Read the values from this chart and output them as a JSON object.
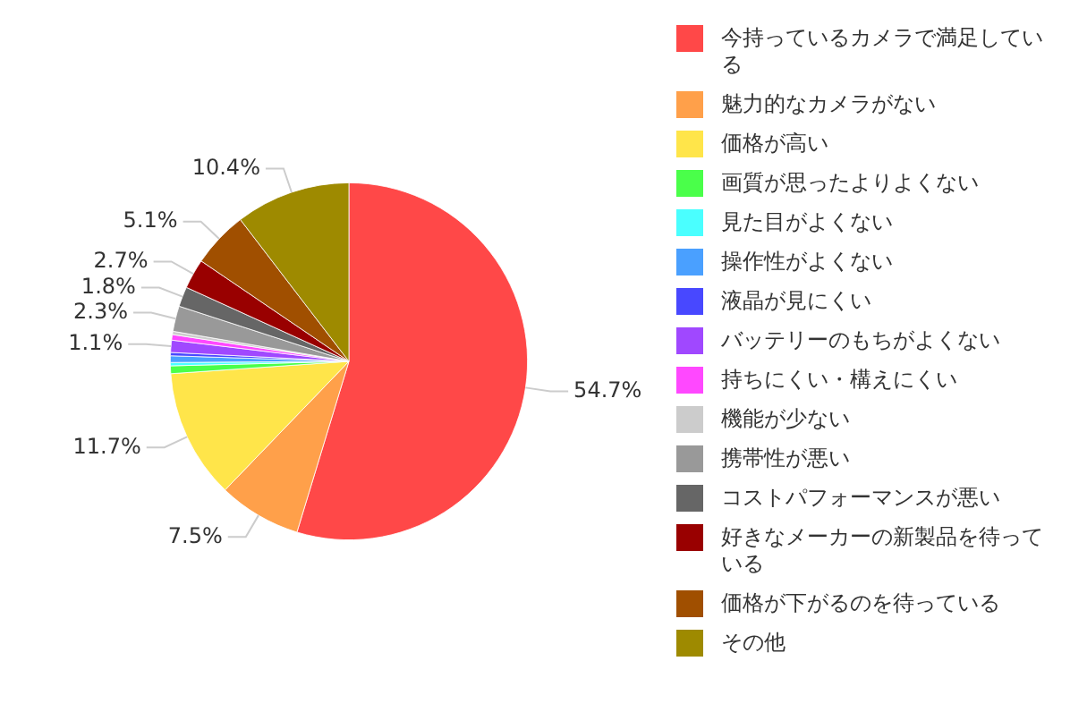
{
  "chart_data": {
    "type": "pie",
    "categories": [
      "今持っているカメラで満足している",
      "魅力的なカメラがない",
      "価格が高い",
      "画質が思ったよりよくない",
      "見た目がよくない",
      "操作性がよくない",
      "液晶が見にくい",
      "バッテリーのもちがよくない",
      "持ちにくい・構えにくい",
      "機能が少ない",
      "携帯性が悪い",
      "コストパフォーマンスが悪い",
      "好きなメーカーの新製品を待っている",
      "価格が下がるのを待っている",
      "その他"
    ],
    "values": [
      54.7,
      7.5,
      11.7,
      0.7,
      0.3,
      0.6,
      0.3,
      1.1,
      0.5,
      0.3,
      2.3,
      1.8,
      2.7,
      5.1,
      10.4
    ],
    "value_labels": [
      "54.7%",
      "7.5%",
      "11.7%",
      null,
      null,
      null,
      null,
      "1.1%",
      null,
      null,
      "2.3%",
      "1.8%",
      "2.7%",
      "5.1%",
      "10.4%"
    ],
    "colors": [
      "#ff4848",
      "#ffa04a",
      "#ffe54a",
      "#4aff4a",
      "#4affff",
      "#4aa0ff",
      "#4848ff",
      "#a048ff",
      "#ff48ff",
      "#cccccc",
      "#999999",
      "#666666",
      "#990000",
      "#a04f00",
      "#9e8a00"
    ],
    "legend": "right"
  }
}
